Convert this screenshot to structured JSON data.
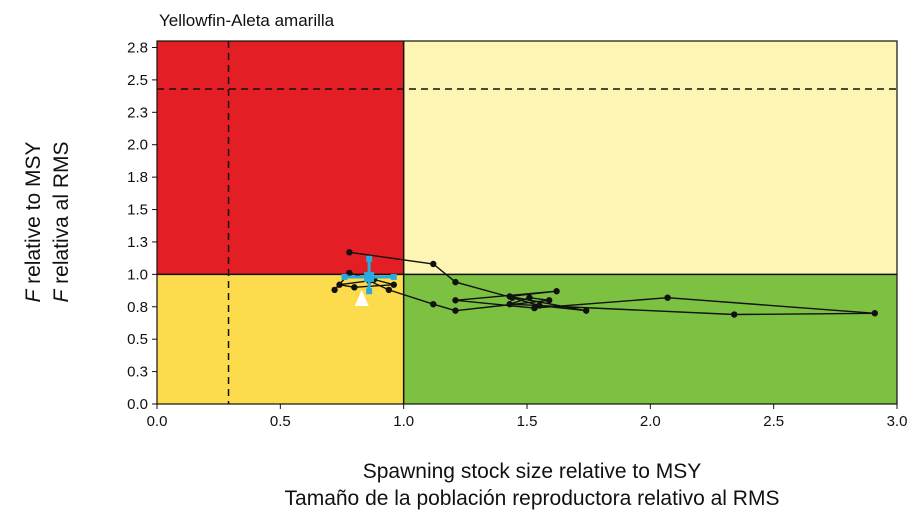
{
  "chart_data": {
    "type": "scatter",
    "title": "Yellowfin-Aleta amarilla",
    "xlabel_lines": [
      "Spawning stock size relative to MSY",
      "Tamaño de la población reproductora relativo al RMS"
    ],
    "ylabel_lines": [
      {
        "italic_prefix": "F",
        "rest": " relative to MSY"
      },
      {
        "italic_prefix": "F",
        "rest": " relativa al RMS"
      }
    ],
    "xlim": [
      0,
      3.0
    ],
    "ylim": [
      0,
      2.8
    ],
    "x_ticks": [
      0.0,
      0.5,
      1.0,
      1.5,
      2.0,
      2.5,
      3.0
    ],
    "x_tick_labels": [
      "0.0",
      "0.5",
      "1.0",
      "1.5",
      "2.0",
      "2.5",
      "3.0"
    ],
    "y_ticks": [
      0.0,
      0.25,
      0.5,
      0.75,
      1.0,
      1.25,
      1.5,
      1.75,
      2.0,
      2.25,
      2.5,
      2.75
    ],
    "y_tick_labels": [
      "0.0",
      "0.3",
      "0.5",
      "0.8",
      "1.0",
      "1.3",
      "1.5",
      "1.8",
      "2.0",
      "2.3",
      "2.5",
      "2.8"
    ],
    "quadrants": [
      {
        "name": "overfished-overfishing",
        "x": [
          0,
          1.0
        ],
        "y": [
          1.0,
          2.8
        ],
        "color": "#e31e24"
      },
      {
        "name": "healthy-overfishing",
        "x": [
          1.0,
          3.0
        ],
        "y": [
          1.0,
          2.8
        ],
        "color": "#fcf5b3"
      },
      {
        "name": "overfished-no-overfishing",
        "x": [
          0,
          1.0
        ],
        "y": [
          0,
          1.0
        ],
        "color": "#fcdc4d"
      },
      {
        "name": "healthy",
        "x": [
          1.0,
          3.0
        ],
        "y": [
          0,
          1.0
        ],
        "color": "#7cc142"
      }
    ],
    "reference_lines": {
      "vertical_dashed_x": 0.29,
      "horizontal_dashed_y": 2.43
    },
    "trajectory": {
      "x": [
        0.78,
        1.12,
        1.21,
        1.44,
        1.55,
        1.74,
        1.43,
        1.62,
        1.21,
        1.53,
        2.07,
        2.91,
        2.34,
        1.43,
        1.51,
        1.59,
        1.21,
        1.12,
        0.94,
        0.86,
        0.74,
        0.8,
        0.96,
        0.88,
        0.78,
        0.72
      ],
      "y": [
        1.17,
        1.08,
        0.94,
        0.82,
        0.76,
        0.72,
        0.83,
        0.87,
        0.8,
        0.74,
        0.82,
        0.7,
        0.69,
        0.77,
        0.82,
        0.8,
        0.72,
        0.77,
        0.88,
        0.95,
        0.92,
        0.9,
        0.92,
        0.96,
        1.01,
        0.88
      ],
      "color": "#111111"
    },
    "current_estimate": {
      "x": 0.86,
      "y": 0.98,
      "x_ci": [
        0.76,
        0.96
      ],
      "y_ci": [
        0.87,
        1.12
      ],
      "color": "#2aa9e0"
    },
    "projection_marker": {
      "x": 0.83,
      "y": 0.81,
      "shape": "triangle",
      "color": "#ffffff"
    }
  }
}
